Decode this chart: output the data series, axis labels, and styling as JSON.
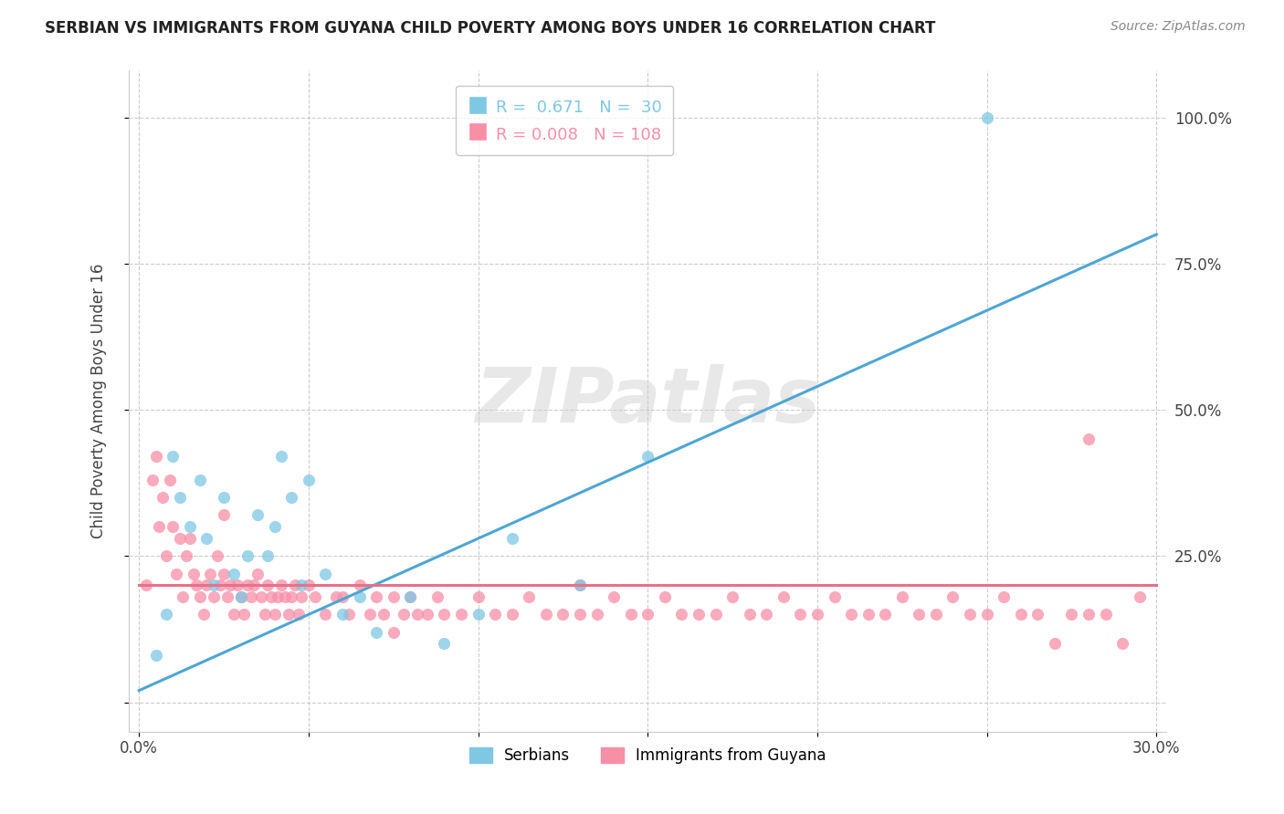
{
  "title": "SERBIAN VS IMMIGRANTS FROM GUYANA CHILD POVERTY AMONG BOYS UNDER 16 CORRELATION CHART",
  "source": "Source: ZipAtlas.com",
  "ylabel": "Child Poverty Among Boys Under 16",
  "xlim": [
    0.0,
    0.3
  ],
  "ylim": [
    -0.05,
    1.08
  ],
  "xtick_pos": [
    0.0,
    0.05,
    0.1,
    0.15,
    0.2,
    0.25,
    0.3
  ],
  "xticklabels": [
    "0.0%",
    "",
    "",
    "",
    "",
    "",
    "30.0%"
  ],
  "ytick_pos": [
    0.0,
    0.25,
    0.5,
    0.75,
    1.0
  ],
  "yticklabels": [
    "",
    "25.0%",
    "50.0%",
    "75.0%",
    "100.0%"
  ],
  "serbian_R": 0.671,
  "serbian_N": 30,
  "guyana_R": 0.008,
  "guyana_N": 108,
  "serbian_color": "#7ec8e3",
  "guyana_color": "#f78fa7",
  "serbian_line_color": "#4da6d4",
  "guyana_line_color": "#e8708a",
  "watermark": "ZIPatlas",
  "legend_serbian_label": "Serbians",
  "legend_guyana_label": "Immigrants from Guyana",
  "serbian_line_x0": 0.0,
  "serbian_line_y0": 0.02,
  "serbian_line_x1": 0.3,
  "serbian_line_y1": 0.8,
  "guyana_line_x0": 0.0,
  "guyana_line_y0": 0.2,
  "guyana_line_x1": 0.3,
  "guyana_line_y1": 0.2,
  "serbian_scatter_x": [
    0.005,
    0.008,
    0.01,
    0.012,
    0.015,
    0.018,
    0.02,
    0.022,
    0.025,
    0.028,
    0.03,
    0.032,
    0.035,
    0.038,
    0.04,
    0.042,
    0.045,
    0.048,
    0.05,
    0.055,
    0.06,
    0.065,
    0.07,
    0.08,
    0.09,
    0.1,
    0.11,
    0.13,
    0.15,
    0.25
  ],
  "serbian_scatter_y": [
    0.08,
    0.15,
    0.42,
    0.35,
    0.3,
    0.38,
    0.28,
    0.2,
    0.35,
    0.22,
    0.18,
    0.25,
    0.32,
    0.25,
    0.3,
    0.42,
    0.35,
    0.2,
    0.38,
    0.22,
    0.15,
    0.18,
    0.12,
    0.18,
    0.1,
    0.15,
    0.28,
    0.2,
    0.42,
    1.0
  ],
  "guyana_scatter_x": [
    0.002,
    0.004,
    0.005,
    0.006,
    0.007,
    0.008,
    0.009,
    0.01,
    0.011,
    0.012,
    0.013,
    0.014,
    0.015,
    0.016,
    0.017,
    0.018,
    0.019,
    0.02,
    0.021,
    0.022,
    0.023,
    0.024,
    0.025,
    0.026,
    0.027,
    0.028,
    0.029,
    0.03,
    0.031,
    0.032,
    0.033,
    0.034,
    0.035,
    0.036,
    0.037,
    0.038,
    0.039,
    0.04,
    0.041,
    0.042,
    0.043,
    0.044,
    0.045,
    0.046,
    0.047,
    0.048,
    0.05,
    0.052,
    0.055,
    0.058,
    0.06,
    0.062,
    0.065,
    0.068,
    0.07,
    0.072,
    0.075,
    0.078,
    0.08,
    0.082,
    0.085,
    0.088,
    0.09,
    0.095,
    0.1,
    0.105,
    0.11,
    0.115,
    0.12,
    0.125,
    0.13,
    0.135,
    0.14,
    0.145,
    0.15,
    0.155,
    0.16,
    0.165,
    0.17,
    0.175,
    0.18,
    0.185,
    0.19,
    0.195,
    0.2,
    0.205,
    0.21,
    0.215,
    0.22,
    0.225,
    0.23,
    0.235,
    0.24,
    0.245,
    0.25,
    0.255,
    0.26,
    0.265,
    0.27,
    0.275,
    0.28,
    0.285,
    0.29,
    0.025,
    0.075,
    0.13,
    0.28,
    0.295
  ],
  "guyana_scatter_y": [
    0.2,
    0.38,
    0.42,
    0.3,
    0.35,
    0.25,
    0.38,
    0.3,
    0.22,
    0.28,
    0.18,
    0.25,
    0.28,
    0.22,
    0.2,
    0.18,
    0.15,
    0.2,
    0.22,
    0.18,
    0.25,
    0.2,
    0.22,
    0.18,
    0.2,
    0.15,
    0.2,
    0.18,
    0.15,
    0.2,
    0.18,
    0.2,
    0.22,
    0.18,
    0.15,
    0.2,
    0.18,
    0.15,
    0.18,
    0.2,
    0.18,
    0.15,
    0.18,
    0.2,
    0.15,
    0.18,
    0.2,
    0.18,
    0.15,
    0.18,
    0.18,
    0.15,
    0.2,
    0.15,
    0.18,
    0.15,
    0.18,
    0.15,
    0.18,
    0.15,
    0.15,
    0.18,
    0.15,
    0.15,
    0.18,
    0.15,
    0.15,
    0.18,
    0.15,
    0.15,
    0.15,
    0.15,
    0.18,
    0.15,
    0.15,
    0.18,
    0.15,
    0.15,
    0.15,
    0.18,
    0.15,
    0.15,
    0.18,
    0.15,
    0.15,
    0.18,
    0.15,
    0.15,
    0.15,
    0.18,
    0.15,
    0.15,
    0.18,
    0.15,
    0.15,
    0.18,
    0.15,
    0.15,
    0.1,
    0.15,
    0.15,
    0.15,
    0.1,
    0.32,
    0.12,
    0.2,
    0.45,
    0.18
  ]
}
